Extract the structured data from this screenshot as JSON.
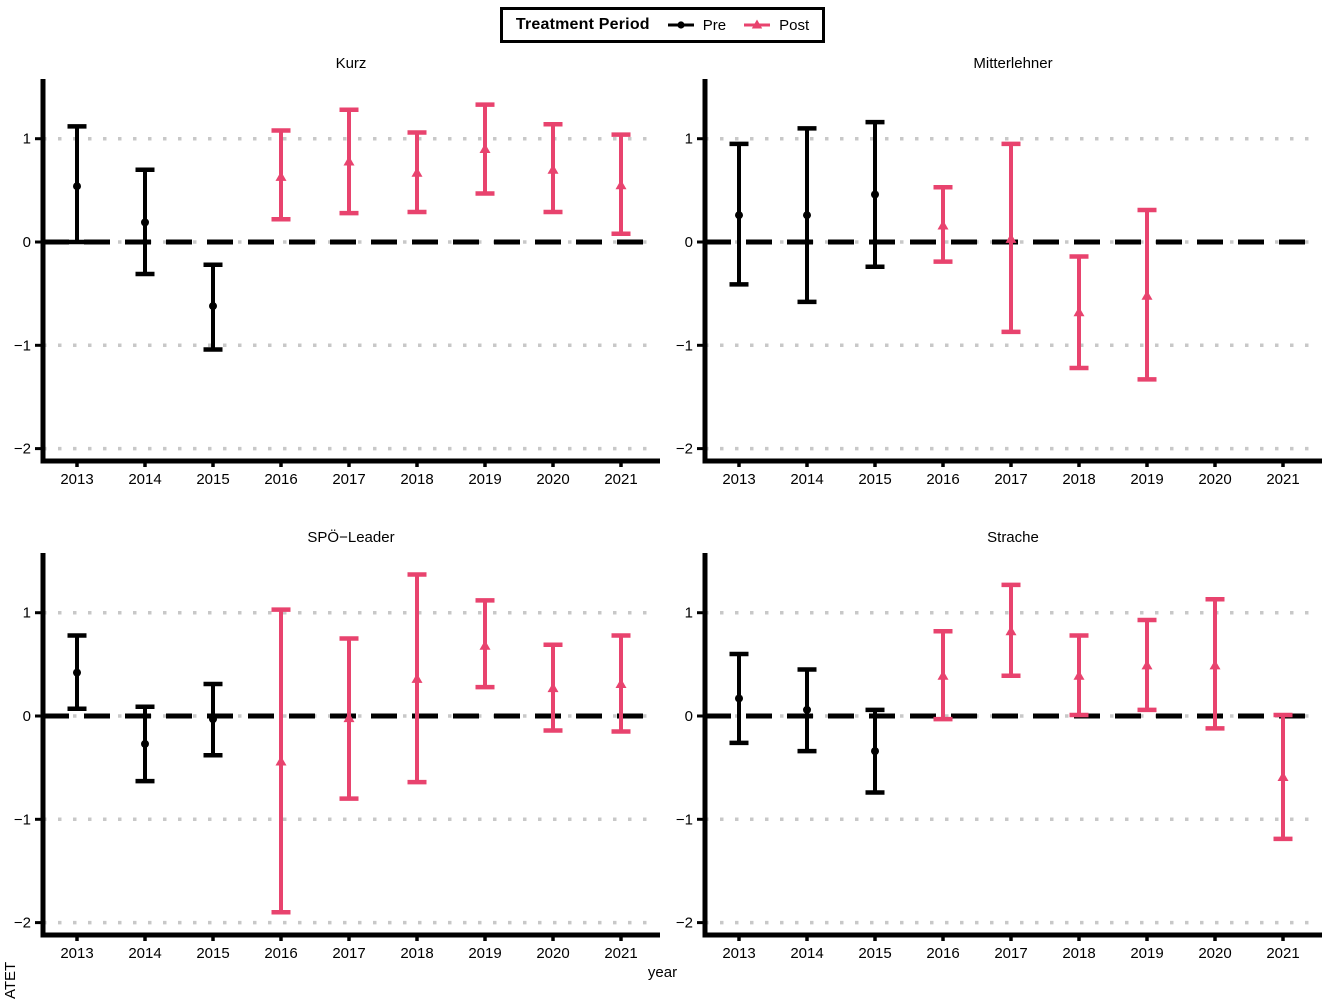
{
  "legend": {
    "title": "Treatment Period",
    "items": [
      {
        "label": "Pre",
        "marker": "circle",
        "color": "#000000"
      },
      {
        "label": "Post",
        "marker": "triangle",
        "color": "#E8436E"
      }
    ]
  },
  "axes": {
    "x_label": "year",
    "y_label": "ATET",
    "x_categories": [
      "2013",
      "2014",
      "2015",
      "2016",
      "2017",
      "2018",
      "2019",
      "2020",
      "2021"
    ],
    "y_ticks": [
      {
        "label": "1",
        "value": 1
      },
      {
        "label": "0",
        "value": 0
      },
      {
        "label": "−1",
        "value": -1
      },
      {
        "label": "−2",
        "value": -2
      }
    ],
    "y_range": [
      -2.12,
      1.52
    ],
    "dotted_gridlines": [
      1,
      0,
      -1,
      -2
    ],
    "reference_line": 0,
    "grid_on": true,
    "grid_color": "#C8C8C8",
    "axis_color": "#000000",
    "legend_position": "top-center"
  },
  "chart_data": [
    {
      "type": "errorbar",
      "title": "Kurz",
      "points": [
        {
          "year": "2013",
          "period": "Pre",
          "estimate": 0.54,
          "lower": 0.0,
          "upper": 1.12
        },
        {
          "year": "2014",
          "period": "Pre",
          "estimate": 0.19,
          "lower": -0.31,
          "upper": 0.7
        },
        {
          "year": "2015",
          "period": "Pre",
          "estimate": -0.62,
          "lower": -1.04,
          "upper": -0.22
        },
        {
          "year": "2016",
          "period": "Post",
          "estimate": 0.63,
          "lower": 0.22,
          "upper": 1.08
        },
        {
          "year": "2017",
          "period": "Post",
          "estimate": 0.78,
          "lower": 0.28,
          "upper": 1.28
        },
        {
          "year": "2018",
          "period": "Post",
          "estimate": 0.67,
          "lower": 0.29,
          "upper": 1.06
        },
        {
          "year": "2019",
          "period": "Post",
          "estimate": 0.9,
          "lower": 0.47,
          "upper": 1.33
        },
        {
          "year": "2020",
          "period": "Post",
          "estimate": 0.7,
          "lower": 0.29,
          "upper": 1.14
        },
        {
          "year": "2021",
          "period": "Post",
          "estimate": 0.55,
          "lower": 0.08,
          "upper": 1.04
        }
      ]
    },
    {
      "type": "errorbar",
      "title": "Mitterlehner",
      "points": [
        {
          "year": "2013",
          "period": "Pre",
          "estimate": 0.26,
          "lower": -0.41,
          "upper": 0.95
        },
        {
          "year": "2014",
          "period": "Pre",
          "estimate": 0.26,
          "lower": -0.58,
          "upper": 1.1
        },
        {
          "year": "2015",
          "period": "Pre",
          "estimate": 0.46,
          "lower": -0.24,
          "upper": 1.16
        },
        {
          "year": "2016",
          "period": "Post",
          "estimate": 0.16,
          "lower": -0.19,
          "upper": 0.53
        },
        {
          "year": "2017",
          "period": "Post",
          "estimate": 0.03,
          "lower": -0.87,
          "upper": 0.95
        },
        {
          "year": "2018",
          "period": "Post",
          "estimate": -0.68,
          "lower": -1.22,
          "upper": -0.14
        },
        {
          "year": "2019",
          "period": "Post",
          "estimate": -0.52,
          "lower": -1.33,
          "upper": 0.31
        }
      ]
    },
    {
      "type": "errorbar",
      "title": "SPÖ−Leader",
      "points": [
        {
          "year": "2013",
          "period": "Pre",
          "estimate": 0.42,
          "lower": 0.07,
          "upper": 0.78
        },
        {
          "year": "2014",
          "period": "Pre",
          "estimate": -0.27,
          "lower": -0.63,
          "upper": 0.09
        },
        {
          "year": "2015",
          "period": "Pre",
          "estimate": -0.03,
          "lower": -0.38,
          "upper": 0.31
        },
        {
          "year": "2016",
          "period": "Post",
          "estimate": -0.44,
          "lower": -1.9,
          "upper": 1.03
        },
        {
          "year": "2017",
          "period": "Post",
          "estimate": -0.02,
          "lower": -0.8,
          "upper": 0.75
        },
        {
          "year": "2018",
          "period": "Post",
          "estimate": 0.36,
          "lower": -0.64,
          "upper": 1.37
        },
        {
          "year": "2019",
          "period": "Post",
          "estimate": 0.68,
          "lower": 0.28,
          "upper": 1.12
        },
        {
          "year": "2020",
          "period": "Post",
          "estimate": 0.27,
          "lower": -0.14,
          "upper": 0.69
        },
        {
          "year": "2021",
          "period": "Post",
          "estimate": 0.31,
          "lower": -0.15,
          "upper": 0.78
        }
      ]
    },
    {
      "type": "errorbar",
      "title": "Strache",
      "points": [
        {
          "year": "2013",
          "period": "Pre",
          "estimate": 0.17,
          "lower": -0.26,
          "upper": 0.6
        },
        {
          "year": "2014",
          "period": "Pre",
          "estimate": 0.06,
          "lower": -0.34,
          "upper": 0.45
        },
        {
          "year": "2015",
          "period": "Pre",
          "estimate": -0.34,
          "lower": -0.74,
          "upper": 0.06
        },
        {
          "year": "2016",
          "period": "Post",
          "estimate": 0.39,
          "lower": -0.03,
          "upper": 0.82
        },
        {
          "year": "2017",
          "period": "Post",
          "estimate": 0.82,
          "lower": 0.39,
          "upper": 1.27
        },
        {
          "year": "2018",
          "period": "Post",
          "estimate": 0.39,
          "lower": 0.01,
          "upper": 0.78
        },
        {
          "year": "2019",
          "period": "Post",
          "estimate": 0.49,
          "lower": 0.06,
          "upper": 0.93
        },
        {
          "year": "2020",
          "period": "Post",
          "estimate": 0.49,
          "lower": -0.12,
          "upper": 1.13
        },
        {
          "year": "2021",
          "period": "Post",
          "estimate": -0.59,
          "lower": -1.19,
          "upper": 0.01
        }
      ]
    }
  ]
}
